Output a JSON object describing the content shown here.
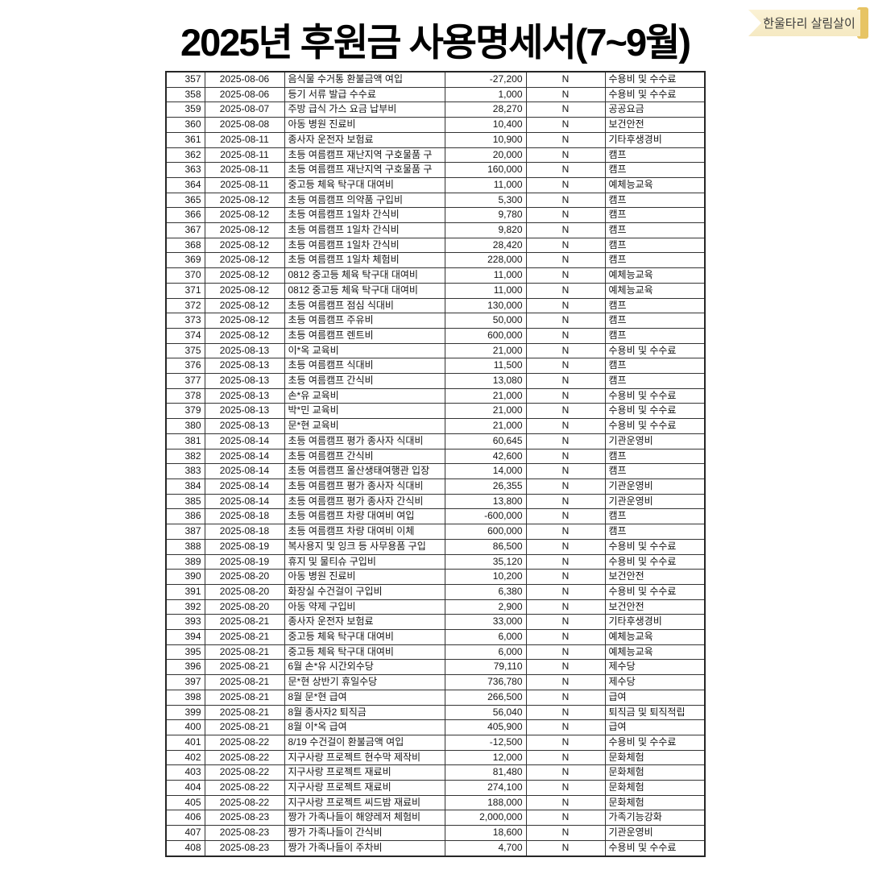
{
  "page": {
    "title": "2025년 후원금 사용명세서(7~9월)"
  },
  "badge": {
    "label": "한울타리 살림살이",
    "bg_color": "#FBF2D5",
    "bg_color_bottom": "#F5E9C2",
    "edge_color": "#E7C464",
    "text_color": "#3A3A3A"
  },
  "table": {
    "rows": [
      [
        "357",
        "2025-08-06",
        "음식물 수거통 환불금액 여입",
        "-27,200",
        "N",
        "수용비 및 수수료"
      ],
      [
        "358",
        "2025-08-06",
        "등기 서류 발급 수수료",
        "1,000",
        "N",
        "수용비 및 수수료"
      ],
      [
        "359",
        "2025-08-07",
        "주방 급식 가스 요금 납부비",
        "28,270",
        "N",
        "공공요금"
      ],
      [
        "360",
        "2025-08-08",
        "아동 병원 진료비",
        "10,400",
        "N",
        "보건안전"
      ],
      [
        "361",
        "2025-08-11",
        "종사자 운전자 보험료",
        "10,900",
        "N",
        "기타후생경비"
      ],
      [
        "362",
        "2025-08-11",
        "초등 여름캠프 재난지역 구호물품 구",
        "20,000",
        "N",
        "캠프"
      ],
      [
        "363",
        "2025-08-11",
        "초등 여름캠프 재난지역 구호물품 구",
        "160,000",
        "N",
        "캠프"
      ],
      [
        "364",
        "2025-08-11",
        "중고등 체육 탁구대 대여비",
        "11,000",
        "N",
        "예체능교육"
      ],
      [
        "365",
        "2025-08-12",
        "초등 여름캠프 의약품 구입비",
        "5,300",
        "N",
        "캠프"
      ],
      [
        "366",
        "2025-08-12",
        "초등 여름캠프 1일차 간식비",
        "9,780",
        "N",
        "캠프"
      ],
      [
        "367",
        "2025-08-12",
        "초등 여름캠프 1일차 간식비",
        "9,820",
        "N",
        "캠프"
      ],
      [
        "368",
        "2025-08-12",
        "초등 여름캠프 1일차 간식비",
        "28,420",
        "N",
        "캠프"
      ],
      [
        "369",
        "2025-08-12",
        "초등 여름캠프 1일차 체험비",
        "228,000",
        "N",
        "캠프"
      ],
      [
        "370",
        "2025-08-12",
        "0812 중고등 체육 탁구대 대여비",
        "11,000",
        "N",
        "예체능교육"
      ],
      [
        "371",
        "2025-08-12",
        "0812 중고등 체육 탁구대 대여비",
        "11,000",
        "N",
        "예체능교육"
      ],
      [
        "372",
        "2025-08-12",
        "초등 여름캠프 점심 식대비",
        "130,000",
        "N",
        "캠프"
      ],
      [
        "373",
        "2025-08-12",
        "초등 여름캠프 주유비",
        "50,000",
        "N",
        "캠프"
      ],
      [
        "374",
        "2025-08-12",
        "초등 여름캠프 렌트비",
        "600,000",
        "N",
        "캠프"
      ],
      [
        "375",
        "2025-08-13",
        "이*옥 교육비",
        "21,000",
        "N",
        "수용비 및 수수료"
      ],
      [
        "376",
        "2025-08-13",
        "초등 여름캠프 식대비",
        "11,500",
        "N",
        "캠프"
      ],
      [
        "377",
        "2025-08-13",
        "초등 여름캠프 간식비",
        "13,080",
        "N",
        "캠프"
      ],
      [
        "378",
        "2025-08-13",
        "손*유 교육비",
        "21,000",
        "N",
        "수용비 및 수수료"
      ],
      [
        "379",
        "2025-08-13",
        "박*민 교육비",
        "21,000",
        "N",
        "수용비 및 수수료"
      ],
      [
        "380",
        "2025-08-13",
        "문*현 교육비",
        "21,000",
        "N",
        "수용비 및 수수료"
      ],
      [
        "381",
        "2025-08-14",
        "초등 여름캠프 평가 종사자 식대비",
        "60,645",
        "N",
        "기관운영비"
      ],
      [
        "382",
        "2025-08-14",
        "초등 여름캠프 간식비",
        "42,600",
        "N",
        "캠프"
      ],
      [
        "383",
        "2025-08-14",
        "초등 여름캠프 울산생태여행관 입장",
        "14,000",
        "N",
        "캠프"
      ],
      [
        "384",
        "2025-08-14",
        "초등 여름캠프 평가 종사자 식대비",
        "26,355",
        "N",
        "기관운영비"
      ],
      [
        "385",
        "2025-08-14",
        "초등 여름캠프 평가 종사자 간식비",
        "13,800",
        "N",
        "기관운영비"
      ],
      [
        "386",
        "2025-08-18",
        "초등 여름캠프 차량 대여비 여입",
        "-600,000",
        "N",
        "캠프"
      ],
      [
        "387",
        "2025-08-18",
        "초등 여름캠프 차량 대여비 이체",
        "600,000",
        "N",
        "캠프"
      ],
      [
        "388",
        "2025-08-19",
        "복사용지 및 잉크 등 사무용품 구입",
        "86,500",
        "N",
        "수용비 및 수수료"
      ],
      [
        "389",
        "2025-08-19",
        "휴지 및 물티슈 구입비",
        "35,120",
        "N",
        "수용비 및 수수료"
      ],
      [
        "390",
        "2025-08-20",
        "아동 병원 진료비",
        "10,200",
        "N",
        "보건안전"
      ],
      [
        "391",
        "2025-08-20",
        "화장실 수건걸이 구입비",
        "6,380",
        "N",
        "수용비 및 수수료"
      ],
      [
        "392",
        "2025-08-20",
        "아동 약제 구입비",
        "2,900",
        "N",
        "보건안전"
      ],
      [
        "393",
        "2025-08-21",
        "종사자 운전자 보험료",
        "33,000",
        "N",
        "기타후생경비"
      ],
      [
        "394",
        "2025-08-21",
        "중고등 체육 탁구대 대여비",
        "6,000",
        "N",
        "예체능교육"
      ],
      [
        "395",
        "2025-08-21",
        "중고등 체육 탁구대 대여비",
        "6,000",
        "N",
        "예체능교육"
      ],
      [
        "396",
        "2025-08-21",
        "6월 손*유 시간외수당",
        "79,110",
        "N",
        "제수당"
      ],
      [
        "397",
        "2025-08-21",
        "문*현 상반기 휴일수당",
        "736,780",
        "N",
        "제수당"
      ],
      [
        "398",
        "2025-08-21",
        "8월 문*현 급여",
        "266,500",
        "N",
        "급여"
      ],
      [
        "399",
        "2025-08-21",
        "8월 종사자2 퇴직금",
        "56,040",
        "N",
        "퇴직금 및 퇴직적립"
      ],
      [
        "400",
        "2025-08-21",
        "8월 이*옥 급여",
        "405,900",
        "N",
        "급여"
      ],
      [
        "401",
        "2025-08-22",
        "8/19 수건걸이 환불금액 여입",
        "-12,500",
        "N",
        "수용비 및 수수료"
      ],
      [
        "402",
        "2025-08-22",
        "지구사랑 프로젝트 현수막 제작비",
        "12,000",
        "N",
        "문화체험"
      ],
      [
        "403",
        "2025-08-22",
        "지구사랑 프로젝트 재료비",
        "81,480",
        "N",
        "문화체험"
      ],
      [
        "404",
        "2025-08-22",
        "지구사랑 프로젝트 재료비",
        "274,100",
        "N",
        "문화체험"
      ],
      [
        "405",
        "2025-08-22",
        "지구사랑 프로젝트 씨드밤 재료비",
        "188,000",
        "N",
        "문화체험"
      ],
      [
        "406",
        "2025-08-23",
        "짱가 가족나들이 해양레저 체험비",
        "2,000,000",
        "N",
        "가족기능강화"
      ],
      [
        "407",
        "2025-08-23",
        "짱가 가족나들이 간식비",
        "18,600",
        "N",
        "기관운영비"
      ],
      [
        "408",
        "2025-08-23",
        "짱가 가족나들이 주차비",
        "4,700",
        "N",
        "수용비 및 수수료"
      ]
    ]
  }
}
